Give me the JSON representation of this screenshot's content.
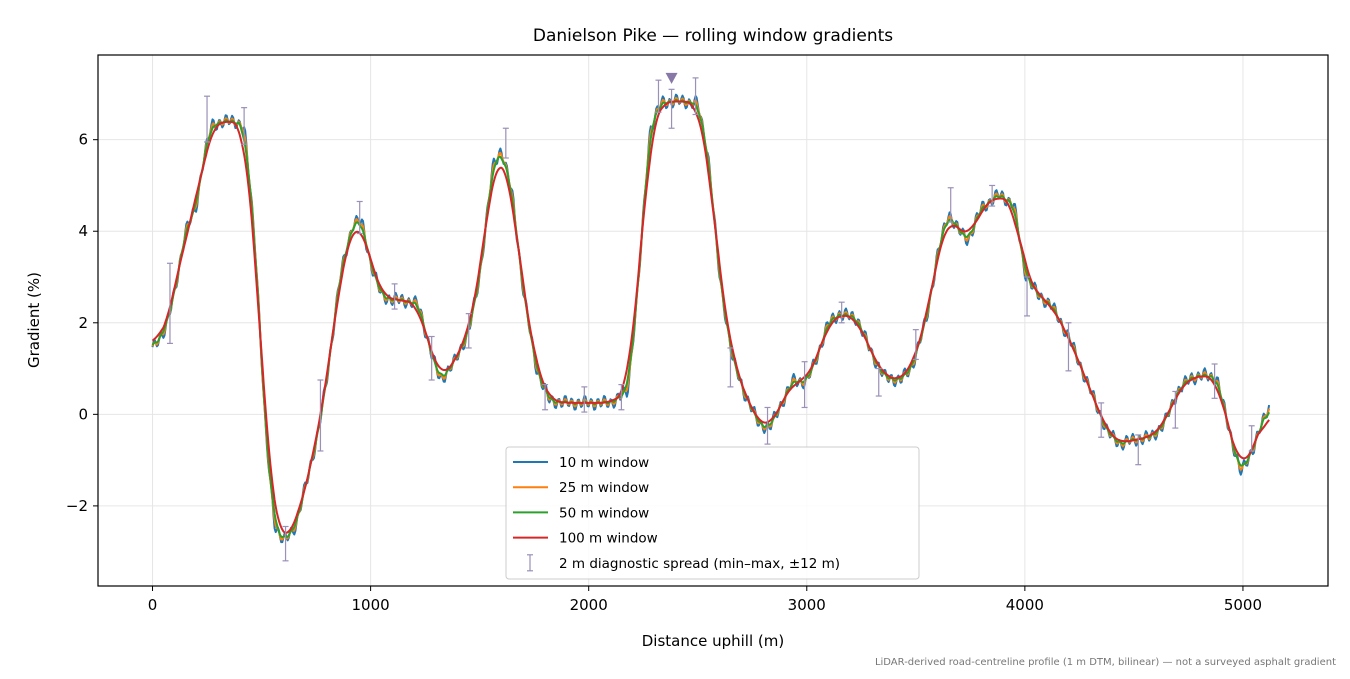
{
  "chart_data": {
    "type": "line",
    "title": "Danielson Pike — rolling window gradients",
    "xlabel": "Distance uphill (m)",
    "ylabel": "Gradient (%)",
    "xlim": [
      -250,
      5390
    ],
    "ylim": [
      -3.75,
      7.85
    ],
    "xticks": [
      0,
      1000,
      2000,
      3000,
      4000,
      5000
    ],
    "yticks": [
      -2,
      0,
      2,
      4,
      6
    ],
    "ytick_labels": [
      "−2",
      "0",
      "2",
      "4",
      "6"
    ],
    "grid": true,
    "legend_position": "bottom-center",
    "footnote": "LiDAR-derived road-centreline profile (1 m DTM, bilinear) — not a surveyed asphalt gradient",
    "base_profile": [
      [
        0,
        1.4
      ],
      [
        60,
        1.9
      ],
      [
        100,
        2.6
      ],
      [
        150,
        4.0
      ],
      [
        200,
        4.5
      ],
      [
        230,
        5.5
      ],
      [
        270,
        6.3
      ],
      [
        320,
        6.4
      ],
      [
        380,
        6.4
      ],
      [
        420,
        6.3
      ],
      [
        470,
        3.8
      ],
      [
        520,
        -0.5
      ],
      [
        560,
        -2.4
      ],
      [
        600,
        -2.8
      ],
      [
        660,
        -2.4
      ],
      [
        700,
        -1.6
      ],
      [
        760,
        -0.4
      ],
      [
        800,
        0.8
      ],
      [
        860,
        3.0
      ],
      [
        920,
        4.2
      ],
      [
        960,
        4.2
      ],
      [
        1000,
        3.3
      ],
      [
        1050,
        2.6
      ],
      [
        1100,
        2.5
      ],
      [
        1150,
        2.5
      ],
      [
        1220,
        2.4
      ],
      [
        1280,
        1.3
      ],
      [
        1320,
        0.75
      ],
      [
        1380,
        1.1
      ],
      [
        1450,
        1.8
      ],
      [
        1500,
        3.0
      ],
      [
        1560,
        5.4
      ],
      [
        1600,
        5.8
      ],
      [
        1650,
        4.8
      ],
      [
        1700,
        2.7
      ],
      [
        1760,
        1.0
      ],
      [
        1820,
        0.3
      ],
      [
        1900,
        0.25
      ],
      [
        2000,
        0.25
      ],
      [
        2100,
        0.25
      ],
      [
        2180,
        0.5
      ],
      [
        2230,
        3.0
      ],
      [
        2280,
        6.2
      ],
      [
        2330,
        6.8
      ],
      [
        2400,
        6.85
      ],
      [
        2500,
        6.8
      ],
      [
        2550,
        5.6
      ],
      [
        2600,
        3.0
      ],
      [
        2660,
        1.2
      ],
      [
        2720,
        0.4
      ],
      [
        2780,
        -0.2
      ],
      [
        2830,
        -0.3
      ],
      [
        2880,
        0.2
      ],
      [
        2940,
        0.75
      ],
      [
        3000,
        0.7
      ],
      [
        3050,
        1.3
      ],
      [
        3100,
        2.0
      ],
      [
        3150,
        2.2
      ],
      [
        3230,
        2.1
      ],
      [
        3300,
        1.3
      ],
      [
        3360,
        0.8
      ],
      [
        3430,
        0.75
      ],
      [
        3480,
        1.0
      ],
      [
        3550,
        2.1
      ],
      [
        3600,
        3.5
      ],
      [
        3650,
        4.4
      ],
      [
        3700,
        4.0
      ],
      [
        3740,
        3.8
      ],
      [
        3800,
        4.5
      ],
      [
        3880,
        4.8
      ],
      [
        3950,
        4.6
      ],
      [
        4000,
        3.1
      ],
      [
        4060,
        2.6
      ],
      [
        4120,
        2.4
      ],
      [
        4200,
        1.7
      ],
      [
        4260,
        1.0
      ],
      [
        4320,
        0.3
      ],
      [
        4380,
        -0.4
      ],
      [
        4440,
        -0.65
      ],
      [
        4500,
        -0.55
      ],
      [
        4580,
        -0.5
      ],
      [
        4640,
        -0.2
      ],
      [
        4700,
        0.5
      ],
      [
        4760,
        0.8
      ],
      [
        4820,
        0.85
      ],
      [
        4880,
        0.8
      ],
      [
        4930,
        -0.2
      ],
      [
        4990,
        -1.3
      ],
      [
        5050,
        -0.7
      ],
      [
        5120,
        0.2
      ]
    ],
    "series": [
      {
        "name": "10 m window",
        "color": "#1f77b4",
        "smoothing_m": 10,
        "noise": 0.16
      },
      {
        "name": "25 m window",
        "color": "#ff7f0e",
        "smoothing_m": 25,
        "noise": 0.08
      },
      {
        "name": "50 m window",
        "color": "#2ca02c",
        "smoothing_m": 50,
        "noise": 0.03
      },
      {
        "name": "100 m window",
        "color": "#d62728",
        "smoothing_m": 100,
        "noise": 0.0
      }
    ],
    "error_bars": {
      "name": "2 m diagnostic spread (min–max, ±12 m)",
      "color": "#9a90b8",
      "points": [
        [
          80,
          2.4,
          1.55,
          3.3
        ],
        [
          250,
          6.4,
          5.95,
          6.95
        ],
        [
          420,
          6.3,
          5.9,
          6.7
        ],
        [
          610,
          -2.8,
          -3.2,
          -2.45
        ],
        [
          770,
          0.0,
          -0.8,
          0.75
        ],
        [
          950,
          4.3,
          3.95,
          4.65
        ],
        [
          1110,
          2.55,
          2.3,
          2.85
        ],
        [
          1280,
          1.2,
          0.75,
          1.7
        ],
        [
          1450,
          1.95,
          1.45,
          2.2
        ],
        [
          1620,
          5.85,
          5.6,
          6.25
        ],
        [
          1800,
          0.45,
          0.1,
          0.65
        ],
        [
          1980,
          0.25,
          0.05,
          0.6
        ],
        [
          2150,
          0.3,
          0.1,
          0.65
        ],
        [
          2320,
          6.85,
          6.6,
          7.3
        ],
        [
          2380,
          6.8,
          6.25,
          7.1
        ],
        [
          2490,
          6.9,
          6.55,
          7.35
        ],
        [
          2650,
          0.95,
          0.6,
          1.45
        ],
        [
          2820,
          -0.3,
          -0.65,
          0.15
        ],
        [
          2990,
          0.6,
          0.15,
          1.15
        ],
        [
          3160,
          2.2,
          2.0,
          2.45
        ],
        [
          3330,
          0.8,
          0.4,
          1.0
        ],
        [
          3500,
          1.4,
          1.2,
          1.85
        ],
        [
          3660,
          4.6,
          4.2,
          4.95
        ],
        [
          3850,
          4.8,
          4.55,
          5.0
        ],
        [
          4010,
          2.55,
          2.15,
          3.0
        ],
        [
          4200,
          1.5,
          0.95,
          2.0
        ],
        [
          4350,
          -0.15,
          -0.5,
          0.25
        ],
        [
          4520,
          -0.7,
          -1.1,
          -0.45
        ],
        [
          4690,
          -0.2,
          -0.3,
          0.5
        ],
        [
          4870,
          0.7,
          0.35,
          1.1
        ],
        [
          5040,
          -0.6,
          -0.8,
          -0.25
        ]
      ]
    },
    "marker": {
      "x": 2380,
      "y": 7.35,
      "color": "#8878a8",
      "shape": "triangle-down"
    }
  }
}
